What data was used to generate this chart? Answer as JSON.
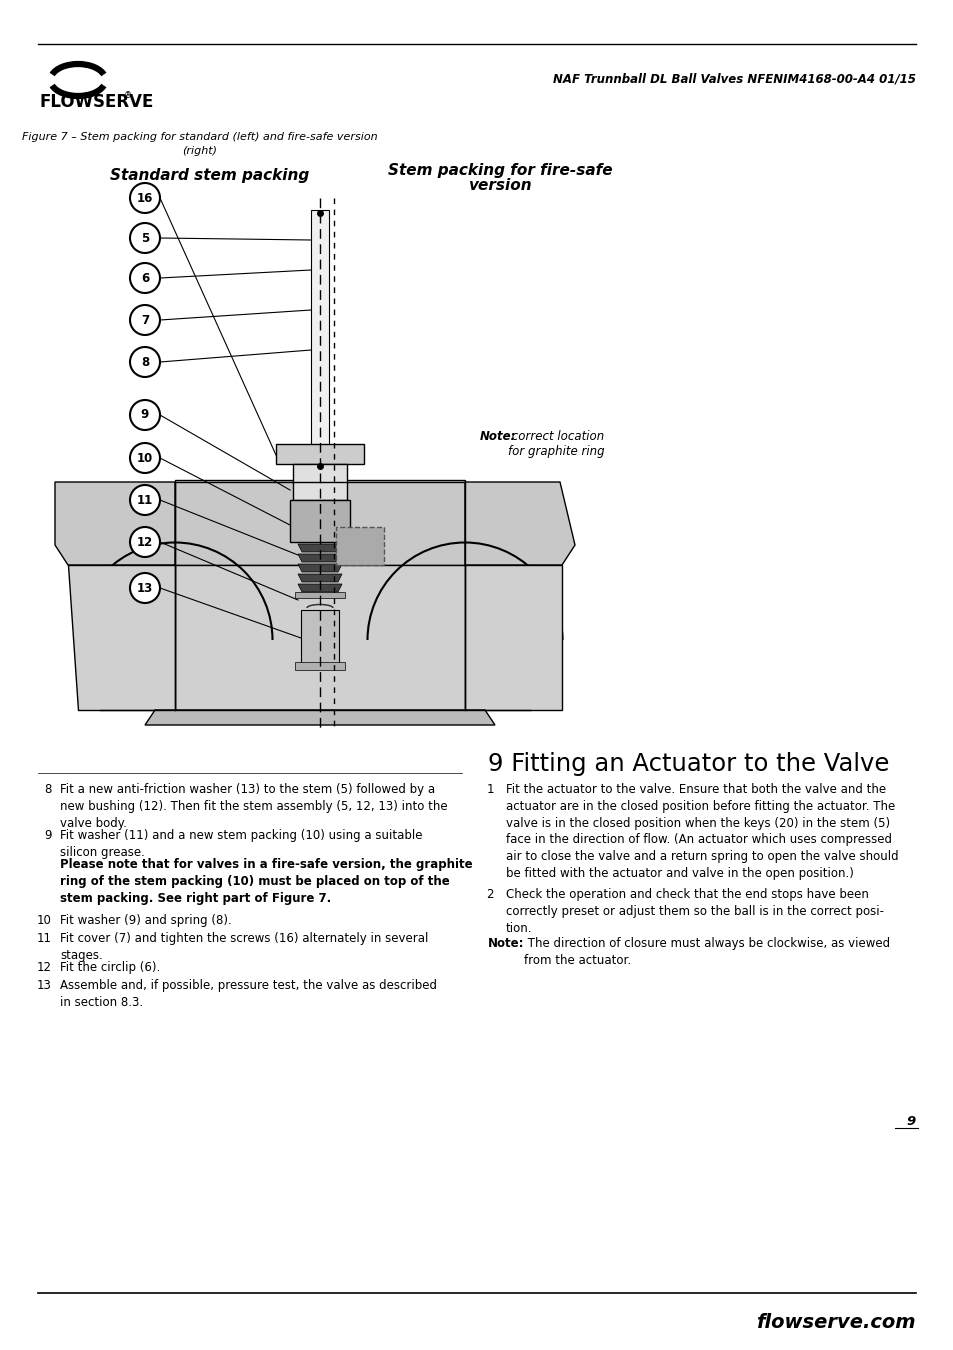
{
  "header_title": "NAF Trunnball DL Ball Valves NFENIM4168-00-A4 01/15",
  "figure_caption_line1": "Figure 7 – Stem packing for standard (left) and fire-safe version",
  "figure_caption_line2": "(right)",
  "left_diagram_title": "Standard stem packing",
  "right_diagram_title_line1": "Stem packing for fire-safe",
  "right_diagram_title_line2": "version",
  "note_diagram_bold": "Note:",
  "note_diagram_text": " correct location\nfor graphite ring",
  "section_title": "9 Fitting an Actuator to the Valve",
  "item8": "Fit a new anti-friction washer (13) to the stem (5) followed by a\nnew bushing (12). Then fit the stem assembly (5, 12, 13) into the\nvalve body.",
  "item9a": "Fit washer (11) and a new stem packing (10) using a suitable\nsilicon grease.",
  "item9b": "Please note that for valves in a fire-safe version, the graphite\nring of the stem packing (10) must be placed on top of the\nstem packing. See right part of Figure 7.",
  "item10": "Fit washer (9) and spring (8).",
  "item11": "Fit cover (7) and tighten the screws (16) alternately in several\nstages.",
  "item12": "Fit the circlip (6).",
  "item13": "Assemble and, if possible, pressure test, the valve as described\nin section 8.3.",
  "item_r1": "Fit the actuator to the valve. Ensure that both the valve and the\nactuator are in the closed position before fitting the actuator. The\nvalve is in the closed position when the keys (20) in the stem (5)\nface in the direction of flow. (An actuator which uses compressed\nair to close the valve and a return spring to open the valve should\nbe fitted with the actuator and valve in the open position.)",
  "item_r2": "Check the operation and check that the end stops have been\ncorrectly preset or adjust them so the ball is in the correct posi-\ntion.",
  "note_bottom_bold": "Note:",
  "note_bottom_text": " The direction of closure must always be clockwise, as viewed\nfrom the actuator.",
  "page_number": "9",
  "footer": "flowserve.com",
  "part_labels": [
    "16",
    "5",
    "6",
    "7",
    "8",
    "9",
    "10",
    "11",
    "12",
    "13"
  ]
}
